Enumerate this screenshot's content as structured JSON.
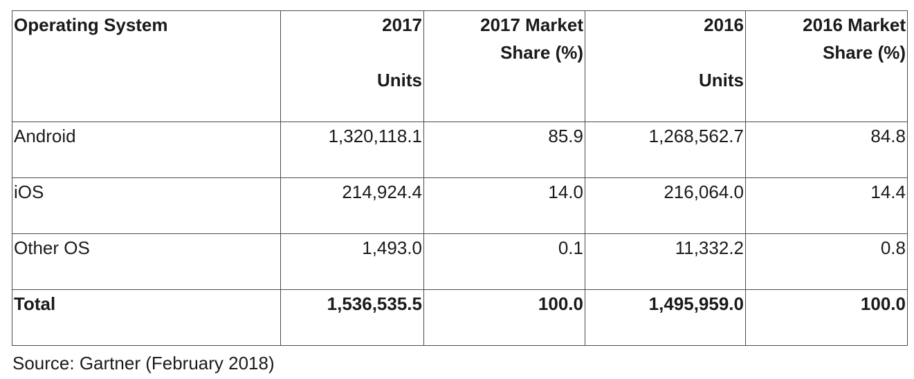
{
  "chart_data": {
    "type": "table",
    "columns": [
      {
        "line1": "Operating System",
        "line2": "",
        "line3": ""
      },
      {
        "line1": "2017",
        "line2": "",
        "line3": "Units"
      },
      {
        "line1": "2017 Market",
        "line2": "Share (%)",
        "line3": ""
      },
      {
        "line1": "2016",
        "line2": "",
        "line3": "Units"
      },
      {
        "line1": "2016 Market",
        "line2": "Share (%)",
        "line3": ""
      }
    ],
    "rows": [
      {
        "os": "Android",
        "units_2017": "1,320,118.1",
        "share_2017": "85.9",
        "units_2016": "1,268,562.7",
        "share_2016": "84.8"
      },
      {
        "os": "iOS",
        "units_2017": "214,924.4",
        "share_2017": "14.0",
        "units_2016": "216,064.0",
        "share_2016": "14.4"
      },
      {
        "os": "Other OS",
        "units_2017": "1,493.0",
        "share_2017": "0.1",
        "units_2016": "11,332.2",
        "share_2016": "0.8"
      }
    ],
    "total": {
      "os": "Total",
      "units_2017": "1,536,535.5",
      "share_2017": "100.0",
      "units_2016": "1,495,959.0",
      "share_2016": "100.0"
    },
    "source": "Source: Gartner (February 2018)"
  }
}
